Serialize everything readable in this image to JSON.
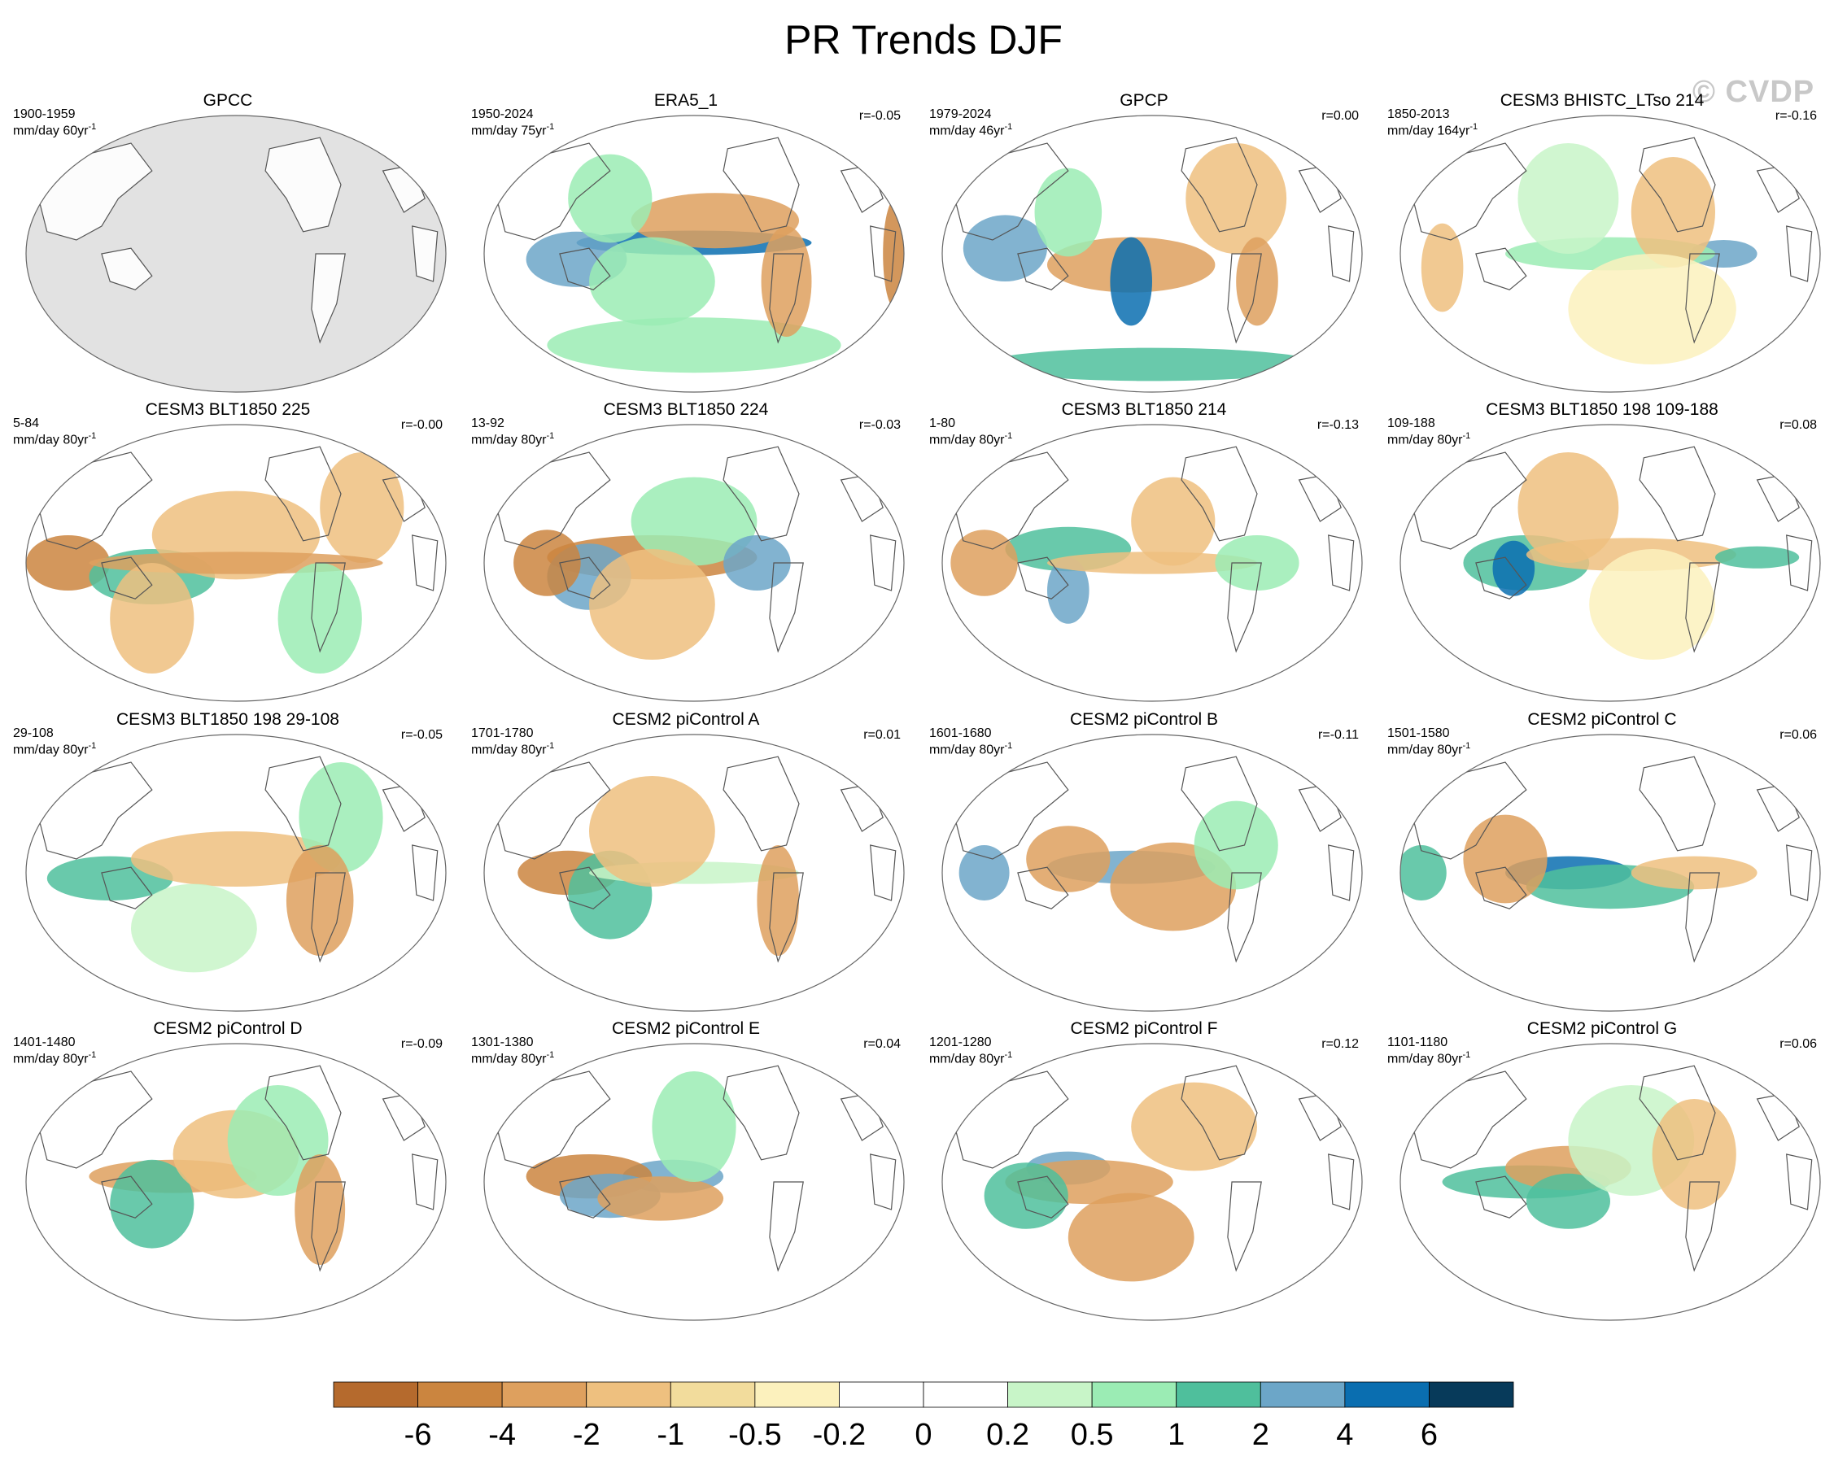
{
  "title": "PR Trends DJF",
  "watermark": "© CVDP",
  "colors": {
    "land": "#e2e2e2",
    "coast": "#555555",
    "border": "#666666"
  },
  "panels": [
    {
      "title": "GPCC",
      "period": "1900-1959",
      "units": "mm/day 60yr",
      "corr": "",
      "masked": true
    },
    {
      "title": "ERA5_1",
      "period": "1950-2024",
      "units": "mm/day 75yr",
      "corr": "r=-0.05",
      "masked": false
    },
    {
      "title": "GPCP",
      "period": "1979-2024",
      "units": "mm/day 46yr",
      "corr": "r=0.00",
      "masked": false
    },
    {
      "title": "CESM3 BHISTC_LTso 214",
      "period": "1850-2013",
      "units": "mm/day 164yr",
      "corr": "r=-0.16",
      "masked": false
    },
    {
      "title": "CESM3 BLT1850 225",
      "period": "5-84",
      "units": "mm/day 80yr",
      "corr": "r=-0.00",
      "masked": false
    },
    {
      "title": "CESM3 BLT1850 224",
      "period": "13-92",
      "units": "mm/day 80yr",
      "corr": "r=-0.03",
      "masked": false
    },
    {
      "title": "CESM3 BLT1850 214",
      "period": "1-80",
      "units": "mm/day 80yr",
      "corr": "r=-0.13",
      "masked": false
    },
    {
      "title": "CESM3 BLT1850 198 109-188",
      "period": "109-188",
      "units": "mm/day 80yr",
      "corr": "r=0.08",
      "masked": false
    },
    {
      "title": "CESM3 BLT1850 198 29-108",
      "period": "29-108",
      "units": "mm/day 80yr",
      "corr": "r=-0.05",
      "masked": false
    },
    {
      "title": "CESM2 piControl A",
      "period": "1701-1780",
      "units": "mm/day 80yr",
      "corr": "r=0.01",
      "masked": false
    },
    {
      "title": "CESM2 piControl B",
      "period": "1601-1680",
      "units": "mm/day 80yr",
      "corr": "r=-0.11",
      "masked": false
    },
    {
      "title": "CESM2 piControl C",
      "period": "1501-1580",
      "units": "mm/day 80yr",
      "corr": "r=0.06",
      "masked": false
    },
    {
      "title": "CESM2 piControl D",
      "period": "1401-1480",
      "units": "mm/day 80yr",
      "corr": "r=-0.09",
      "masked": false
    },
    {
      "title": "CESM2 piControl E",
      "period": "1301-1380",
      "units": "mm/day 80yr",
      "corr": "r=0.04",
      "masked": false
    },
    {
      "title": "CESM2 piControl F",
      "period": "1201-1280",
      "units": "mm/day 80yr",
      "corr": "r=0.12",
      "masked": false
    },
    {
      "title": "CESM2 piControl G",
      "period": "1101-1180",
      "units": "mm/day 80yr",
      "corr": "r=0.06",
      "masked": false
    }
  ],
  "units_superscript": "-1",
  "colorbar": {
    "colors": [
      "#b56a2d",
      "#cb853f",
      "#dea05e",
      "#eec07f",
      "#f2dc9c",
      "#fcf1bd",
      "#ffffff",
      "#ffffff",
      "#c8f5c8",
      "#9becb4",
      "#4fbf9c",
      "#6ca6c8",
      "#0a6eb0",
      "#073a5a"
    ],
    "labels": [
      "-6",
      "-4",
      "-2",
      "-1",
      "-0.5",
      "-0.2",
      "0",
      "0.2",
      "0.5",
      "1",
      "2",
      "4",
      "6"
    ]
  }
}
